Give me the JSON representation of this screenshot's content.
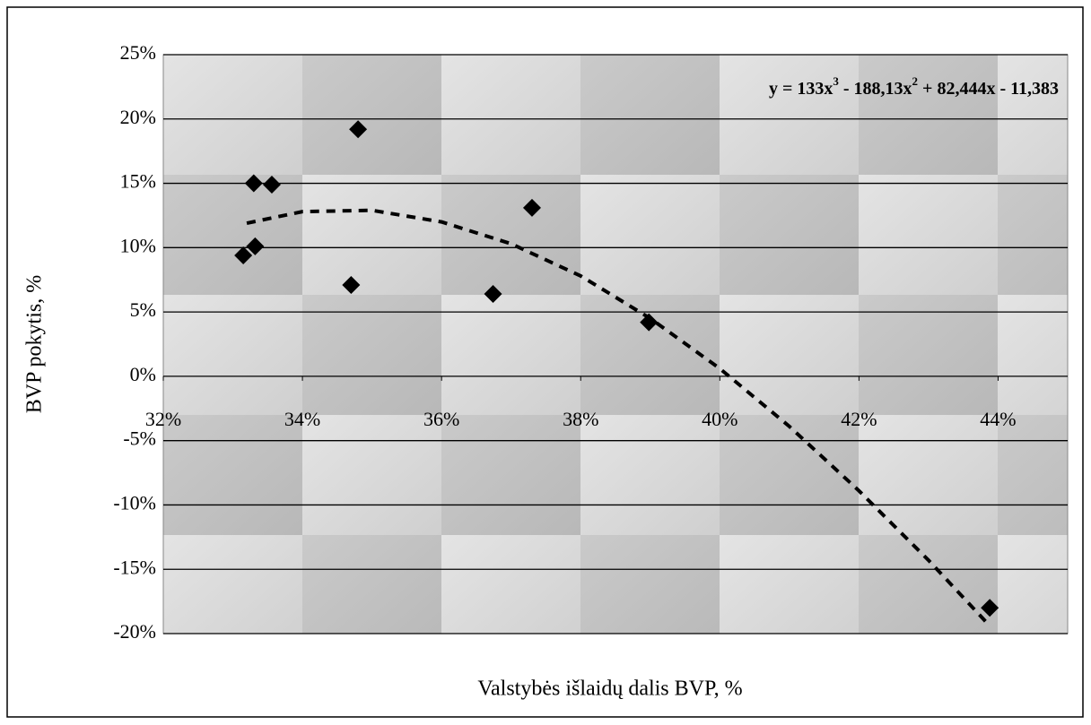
{
  "chart_data": {
    "type": "scatter",
    "x_label": "Valstybės išlaidų dalis BVP, %",
    "y_label": "BVP pokytis, %",
    "annotation": [
      "y = 133x",
      "3",
      " - 188,13x",
      "2",
      " + 82,444x - 11,383"
    ],
    "series": [
      {
        "color": "#000000",
        "x": [
          33.15,
          33.32,
          33.3,
          33.56,
          34.7,
          34.8,
          36.74,
          37.3,
          38.98,
          43.88
        ],
        "values": [
          9.4,
          10.1,
          15.0,
          14.9,
          7.1,
          19.2,
          6.4,
          13.1,
          4.2,
          -18.0
        ]
      }
    ],
    "trendline": {
      "color": "#000000",
      "style": "dashed",
      "x": [
        33.2,
        34,
        35,
        36,
        37,
        38,
        39,
        40,
        41,
        42,
        43,
        43.88
      ],
      "values": [
        11.9,
        12.8,
        12.9,
        12.0,
        10.3,
        7.8,
        4.5,
        0.6,
        -3.9,
        -8.9,
        -14.3,
        -19.4
      ]
    },
    "xlim": [
      32,
      45
    ],
    "ylim": [
      -20,
      25
    ],
    "xticks": [
      {
        "value": 32,
        "label": "32%"
      },
      {
        "value": 34,
        "label": "34%"
      },
      {
        "value": 36,
        "label": "36%"
      },
      {
        "value": 38,
        "label": "38%"
      },
      {
        "value": 40,
        "label": "40%"
      },
      {
        "value": 42,
        "label": "42%"
      },
      {
        "value": 44,
        "label": "44%"
      }
    ],
    "yticks": [
      {
        "value": -20,
        "label": "-20%"
      },
      {
        "value": -15,
        "label": "-15%"
      },
      {
        "value": -10,
        "label": "-10%"
      },
      {
        "value": -5,
        "label": "-5%"
      },
      {
        "value": 0,
        "label": "0%"
      },
      {
        "value": 5,
        "label": "5%"
      },
      {
        "value": 10,
        "label": "10%"
      },
      {
        "value": 15,
        "label": "15%"
      },
      {
        "value": 20,
        "label": "20%"
      },
      {
        "value": 25,
        "label": "25%"
      }
    ],
    "grid": true
  }
}
